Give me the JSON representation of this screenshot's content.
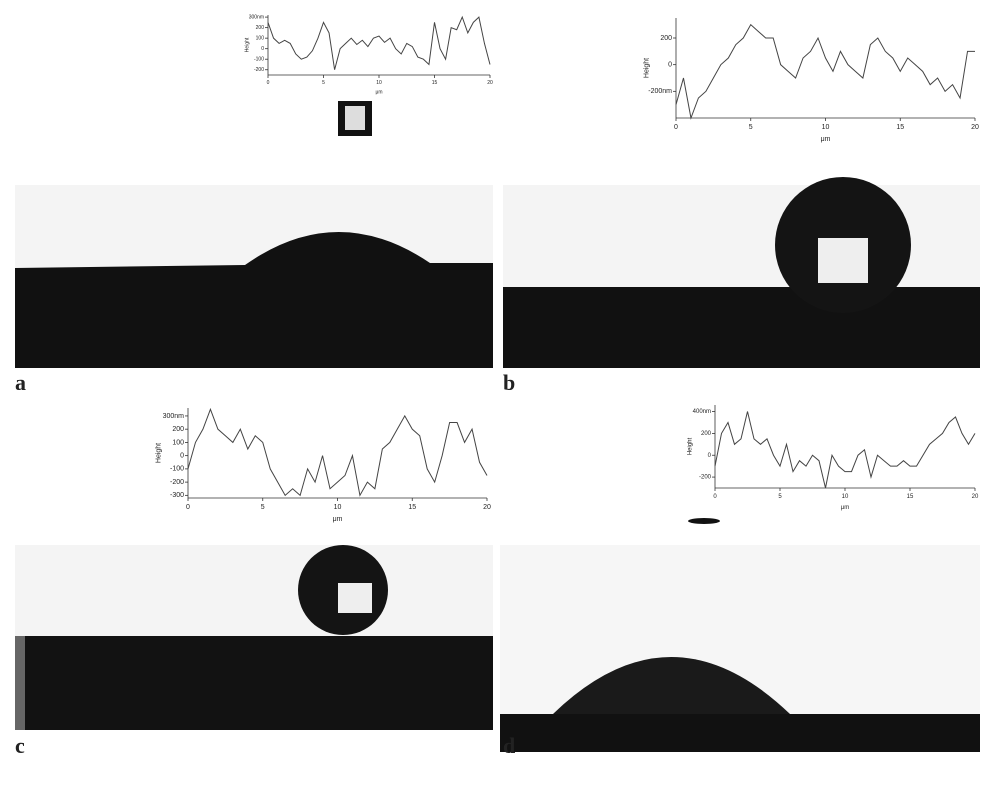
{
  "chart_data": [
    {
      "type": "line",
      "label": "a",
      "ylabel": "Height",
      "xlabel": "μm",
      "color": "#444",
      "x": [
        0,
        0.5,
        1,
        1.5,
        2,
        2.5,
        3,
        3.5,
        4,
        4.5,
        5,
        5.5,
        6,
        6.5,
        7,
        7.5,
        8,
        8.5,
        9,
        9.5,
        10,
        10.5,
        11,
        11.5,
        12,
        12.5,
        13,
        13.5,
        14,
        14.5,
        15,
        15.5,
        16,
        16.5,
        17,
        17.5,
        18,
        18.5,
        19,
        19.5,
        20
      ],
      "values": [
        250,
        100,
        50,
        80,
        50,
        -50,
        -100,
        -80,
        -20,
        100,
        250,
        150,
        -200,
        0,
        50,
        100,
        40,
        80,
        20,
        100,
        120,
        60,
        100,
        0,
        -50,
        50,
        20,
        -80,
        -100,
        -150,
        250,
        0,
        -100,
        200,
        180,
        300,
        150,
        250,
        300,
        50,
        -150
      ],
      "xlim": [
        0,
        20
      ],
      "xticks": [
        0,
        5,
        10,
        15,
        20
      ],
      "ylim": [
        -250,
        320
      ],
      "yticks": [
        {
          "value": 300,
          "label": "300nm"
        },
        200,
        100,
        0,
        -100,
        -200
      ]
    },
    {
      "type": "line",
      "label": "b",
      "ylabel": "Height",
      "xlabel": "μm",
      "color": "#444",
      "x": [
        0,
        0.5,
        1,
        1.5,
        2,
        2.5,
        3,
        3.5,
        4,
        4.5,
        5,
        5.5,
        6,
        6.5,
        7,
        7.5,
        8,
        8.5,
        9,
        9.5,
        10,
        10.5,
        11,
        11.5,
        12,
        12.5,
        13,
        13.5,
        14,
        14.5,
        15,
        15.5,
        16,
        16.5,
        17,
        17.5,
        18,
        18.5,
        19,
        19.5,
        20
      ],
      "values": [
        -300,
        -100,
        -400,
        -250,
        -200,
        -100,
        0,
        50,
        150,
        200,
        300,
        250,
        200,
        200,
        0,
        -50,
        -100,
        50,
        100,
        200,
        50,
        -50,
        100,
        0,
        -50,
        -100,
        150,
        200,
        100,
        50,
        -50,
        50,
        0,
        -50,
        -150,
        -100,
        -200,
        -150,
        -250,
        100,
        100
      ],
      "xlim": [
        0,
        20
      ],
      "xticks": [
        0,
        5,
        10,
        15,
        20
      ],
      "ylim": [
        -400,
        350
      ],
      "yticks": [
        200,
        0,
        {
          "value": -200,
          "label": "-200nm"
        }
      ]
    },
    {
      "type": "line",
      "label": "c",
      "ylabel": "Height",
      "xlabel": "μm",
      "color": "#444",
      "x": [
        0,
        0.5,
        1,
        1.5,
        2,
        2.5,
        3,
        3.5,
        4,
        4.5,
        5,
        5.5,
        6,
        6.5,
        7,
        7.5,
        8,
        8.5,
        9,
        9.5,
        10,
        10.5,
        11,
        11.5,
        12,
        12.5,
        13,
        13.5,
        14,
        14.5,
        15,
        15.5,
        16,
        16.5,
        17,
        17.5,
        18,
        18.5,
        19,
        19.5,
        20
      ],
      "values": [
        -100,
        100,
        200,
        350,
        200,
        150,
        100,
        200,
        50,
        150,
        100,
        -100,
        -200,
        -300,
        -250,
        -300,
        -100,
        -200,
        0,
        -250,
        -200,
        -150,
        0,
        -300,
        -200,
        -250,
        50,
        100,
        200,
        300,
        200,
        150,
        -100,
        -200,
        0,
        250,
        250,
        100,
        200,
        -50,
        -150
      ],
      "xlim": [
        0,
        20
      ],
      "xticks": [
        0,
        5,
        10,
        15,
        20
      ],
      "ylim": [
        -320,
        360
      ],
      "yticks": [
        {
          "value": 300,
          "label": "300nm"
        },
        200,
        100,
        0,
        -100,
        -200,
        -300
      ]
    },
    {
      "type": "line",
      "label": "d",
      "ylabel": "Height",
      "xlabel": "μm",
      "color": "#444",
      "x": [
        0,
        0.5,
        1,
        1.5,
        2,
        2.5,
        3,
        3.5,
        4,
        4.5,
        5,
        5.5,
        6,
        6.5,
        7,
        7.5,
        8,
        8.5,
        9,
        9.5,
        10,
        10.5,
        11,
        11.5,
        12,
        12.5,
        13,
        13.5,
        14,
        14.5,
        15,
        15.5,
        16,
        16.5,
        17,
        17.5,
        18,
        18.5,
        19,
        19.5,
        20
      ],
      "values": [
        -100,
        200,
        300,
        100,
        150,
        400,
        150,
        100,
        150,
        0,
        -100,
        100,
        -150,
        -50,
        -100,
        0,
        -50,
        -300,
        0,
        -100,
        -150,
        -150,
        0,
        50,
        -200,
        0,
        -50,
        -100,
        -100,
        -50,
        -100,
        -100,
        0,
        100,
        150,
        200,
        300,
        350,
        200,
        100,
        200
      ],
      "xlim": [
        0,
        20
      ],
      "xticks": [
        0,
        5,
        10,
        15,
        20
      ],
      "ylim": [
        -300,
        460
      ],
      "yticks": [
        {
          "value": 400,
          "label": "400nm"
        },
        200,
        0,
        -200
      ]
    }
  ]
}
